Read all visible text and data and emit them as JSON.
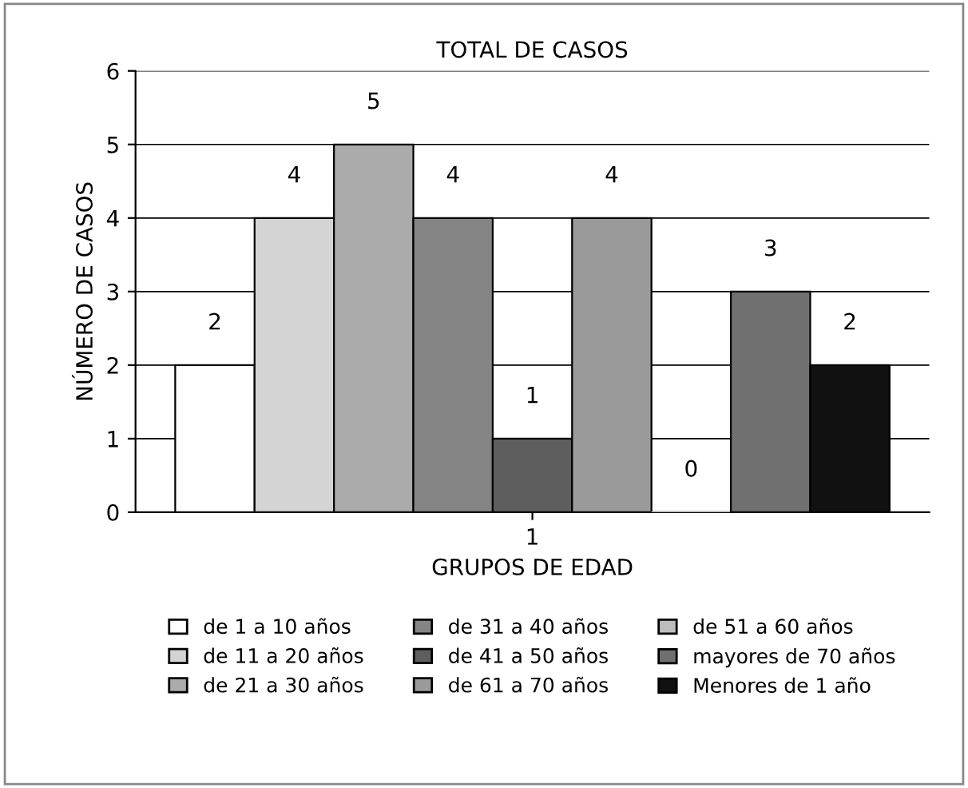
{
  "chart_data": {
    "type": "bar",
    "title": "TOTAL DE CASOS",
    "xlabel": "GRUPOS DE EDAD",
    "ylabel": "NÚMERO DE CASOS",
    "categories": [
      "1"
    ],
    "series": [
      {
        "name": "de 1 a 10 años",
        "color": "#ffffff",
        "values": [
          2
        ]
      },
      {
        "name": "de 11 a 20 años",
        "color": "#d4d4d4",
        "values": [
          4
        ]
      },
      {
        "name": "de 21 a 30 años",
        "color": "#ababab",
        "values": [
          5
        ]
      },
      {
        "name": "de 31 a 40 años",
        "color": "#858585",
        "values": [
          4
        ]
      },
      {
        "name": "de 41 a 50 años",
        "color": "#5e5e5e",
        "values": [
          1
        ]
      },
      {
        "name": "de 61 a 70 años",
        "color": "#9a9a9a",
        "values": [
          4
        ]
      },
      {
        "name": "de 51 a 60 años",
        "color": "#bdbdbd",
        "values": [
          0
        ]
      },
      {
        "name": "mayores de 70 años",
        "color": "#707070",
        "values": [
          3
        ]
      },
      {
        "name": "Menores de 1 año",
        "color": "#111111",
        "values": [
          2
        ]
      }
    ],
    "ylim": [
      0,
      6
    ],
    "yticks": [
      0,
      1,
      2,
      3,
      4,
      5,
      6
    ],
    "grid": "y",
    "legend": "bottom",
    "data_labels": true
  }
}
